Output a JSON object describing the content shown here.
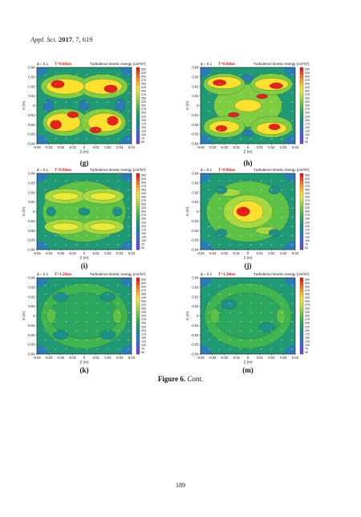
{
  "header": {
    "journal": "Appl. Sci.",
    "year": "2017",
    "rest": ", 7, 619"
  },
  "panels": [
    {
      "id": "g",
      "label": "(g)",
      "phase": "ϕ = 0.1",
      "time": "T=0.68ms",
      "title": "Turbulence kinetic energy (cm²/s²)"
    },
    {
      "id": "h",
      "label": "(h)",
      "phase": "ϕ = 0.1",
      "time": "T=0.68ms",
      "title": "Turbulence kinetic energy (cm²/s²)"
    },
    {
      "id": "i",
      "label": "(i)",
      "phase": "ϕ = 0.1",
      "time": "T=0.96ms",
      "title": "Turbulence kinetic energy (cm²/s²)"
    },
    {
      "id": "j",
      "label": "(j)",
      "phase": "ϕ = 0.1",
      "time": "T=0.96ms",
      "title": "Turbulence kinetic energy (cm²/s²)"
    },
    {
      "id": "k",
      "label": "(k)",
      "phase": "ϕ = 0.1",
      "time": "T=1.28ms",
      "title": "Turbulence kinetic energy (cm²/s²)"
    },
    {
      "id": "m",
      "label": "(m)",
      "phase": "ϕ = 0.1",
      "time": "T=1.28ms",
      "title": "Turbulence kinetic energy (cm²/s²)"
    }
  ],
  "axes": {
    "xlabel": "Z (m)",
    "ylabel": "X (m)",
    "xticks": [
      "-0.04",
      "-0.03",
      "-0.02",
      "-0.01",
      "0",
      "0.01",
      "0.02",
      "0.03",
      "0.04"
    ],
    "yticks": [
      "0.04",
      "0.03",
      "0.02",
      "0.01",
      "0",
      "-0.01",
      "-0.02",
      "-0.03",
      "-0.04"
    ]
  },
  "colorbar": {
    "values": [
      "550",
      "525",
      "500",
      "475",
      "450",
      "425",
      "400",
      "375",
      "350",
      "325",
      "300",
      "275",
      "250",
      "225",
      "200",
      "175",
      "150",
      "125",
      "100",
      "75",
      "50"
    ],
    "colors": [
      "#e8201c",
      "#f04a1c",
      "#f7751e",
      "#fb9d22",
      "#fdc027",
      "#fde02c",
      "#e9ec33",
      "#c8e43a",
      "#a4da3f",
      "#7fce42",
      "#5cc246",
      "#3eb54e",
      "#2aa65e",
      "#1f9a74",
      "#1d9088",
      "#1f86a0",
      "#2a7cb6",
      "#3a70c6",
      "#4a63cf",
      "#5b57d2",
      "#6a4ccf"
    ]
  },
  "caption": {
    "figure": "Figure 6.",
    "cont": "Cont."
  },
  "page_number": "189"
}
